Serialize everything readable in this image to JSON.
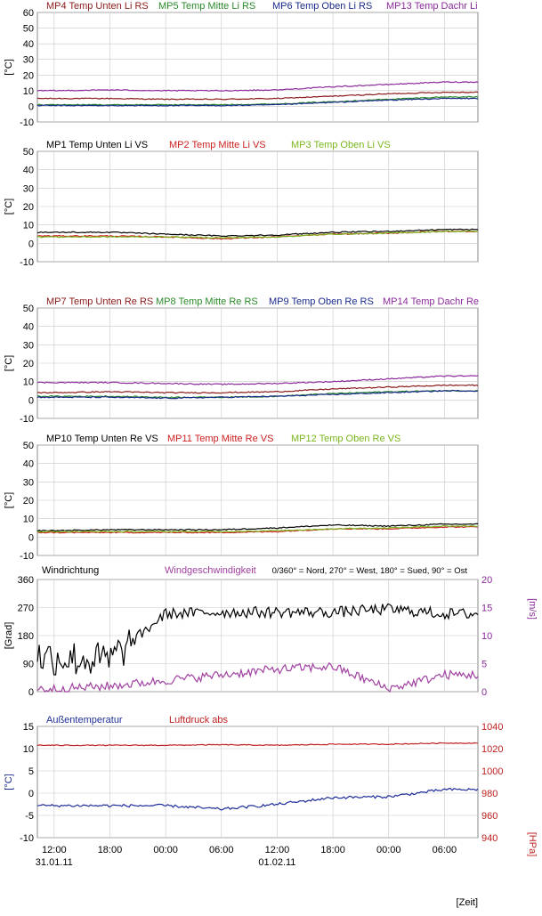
{
  "time_axis": {
    "ticks": [
      "12:00",
      "18:00",
      "00:00",
      "06:00",
      "12:00",
      "18:00",
      "00:00",
      "06:00"
    ],
    "dates": [
      "31.01.11",
      "01.02.11"
    ],
    "label": "[Zeit]"
  },
  "colors": {
    "dark_red": "#8b1a1a",
    "green": "#2a8a2a",
    "navy": "#1a2a8b",
    "purple": "#8b2a9b",
    "black": "#000000",
    "red": "#cc2020",
    "lime": "#7ab51d",
    "magenta": "#a040a0",
    "blue": "#1f2f9a",
    "luft": "#c02020",
    "grid": "#c8c8c8",
    "axis_left": "#1a2a8b",
    "axis_right": "#c02020",
    "axis_right_wind": "#8b2a9b"
  },
  "chart_data": [
    {
      "type": "line",
      "ylabel": "[°C]",
      "ylim": [
        -10,
        60
      ],
      "yticks": [
        -10,
        0,
        10,
        20,
        30,
        40,
        50,
        60
      ],
      "grid": true,
      "x": [
        "12:00",
        "18:00",
        "00:00",
        "06:00",
        "12:00",
        "18:00",
        "00:00",
        "06:00"
      ],
      "series": [
        {
          "name": "MP4 Temp Unten Li RS",
          "color": "dark_red",
          "values": [
            5,
            5,
            4.5,
            4.5,
            5,
            6.5,
            8,
            9
          ]
        },
        {
          "name": "MP5 Temp Mitte Li RS",
          "color": "green",
          "values": [
            1,
            1,
            1,
            1,
            1.5,
            3,
            4.5,
            6
          ]
        },
        {
          "name": "MP6 Temp Oben Li RS",
          "color": "navy",
          "values": [
            0.5,
            0.5,
            0.5,
            0.5,
            1,
            2.5,
            4,
            5
          ]
        },
        {
          "name": "MP13 Temp Dachr Li",
          "color": "purple",
          "values": [
            10,
            10.5,
            10,
            10,
            10.5,
            12.5,
            14,
            15.5
          ]
        }
      ]
    },
    {
      "type": "line",
      "ylabel": "[°C]",
      "ylim": [
        -10,
        50
      ],
      "yticks": [
        -10,
        0,
        10,
        20,
        30,
        40,
        50
      ],
      "grid": true,
      "x": [
        "12:00",
        "18:00",
        "00:00",
        "06:00",
        "12:00",
        "18:00",
        "00:00",
        "06:00"
      ],
      "series": [
        {
          "name": "MP1 Temp Unten Li VS",
          "color": "black",
          "values": [
            6,
            6,
            5,
            4,
            4.5,
            6,
            6.5,
            7.5
          ]
        },
        {
          "name": "MP2 Temp Mitte Li VS",
          "color": "red",
          "values": [
            4,
            4,
            3.5,
            2.5,
            3.5,
            5,
            5.5,
            6.5
          ]
        },
        {
          "name": "MP3 Temp Oben Li VS",
          "color": "lime",
          "values": [
            3.5,
            3.5,
            3.5,
            3,
            3.5,
            5,
            5.5,
            6.5
          ]
        }
      ]
    },
    {
      "type": "line",
      "ylabel": "[°C]",
      "ylim": [
        -10,
        50
      ],
      "yticks": [
        -10,
        0,
        10,
        20,
        30,
        40,
        50
      ],
      "grid": true,
      "x": [
        "12:00",
        "18:00",
        "00:00",
        "06:00",
        "12:00",
        "18:00",
        "00:00",
        "06:00"
      ],
      "series": [
        {
          "name": "MP7 Temp Unten Re RS",
          "color": "dark_red",
          "values": [
            4,
            4.5,
            4,
            4,
            4.5,
            6,
            7,
            8
          ]
        },
        {
          "name": "MP8 Temp Mitte Re RS",
          "color": "green",
          "values": [
            2,
            2,
            1.5,
            1.5,
            2,
            3.5,
            4.5,
            5
          ]
        },
        {
          "name": "MP9 Temp Oben Re RS",
          "color": "navy",
          "values": [
            1.5,
            1.5,
            1,
            1.5,
            2,
            3,
            4,
            5
          ]
        },
        {
          "name": "MP14 Temp Dachr Re",
          "color": "purple",
          "values": [
            9.5,
            9.5,
            9,
            8.5,
            9,
            10,
            11.5,
            13
          ]
        }
      ]
    },
    {
      "type": "line",
      "ylabel": "[°C]",
      "ylim": [
        -10,
        50
      ],
      "yticks": [
        -10,
        0,
        10,
        20,
        30,
        40,
        50
      ],
      "grid": true,
      "x": [
        "12:00",
        "18:00",
        "00:00",
        "06:00",
        "12:00",
        "18:00",
        "00:00",
        "06:00"
      ],
      "series": [
        {
          "name": "MP10 Temp Unten Re VS",
          "color": "black",
          "values": [
            3.5,
            4,
            4,
            4,
            5,
            6.5,
            6,
            7
          ]
        },
        {
          "name": "MP11 Temp Mitte Re VS",
          "color": "red",
          "values": [
            2.5,
            2.5,
            2.5,
            2.5,
            3,
            4.5,
            4.5,
            5.5
          ]
        },
        {
          "name": "MP12 Temp Oben Re VS",
          "color": "lime",
          "values": [
            3,
            3,
            3,
            3,
            3.5,
            4.5,
            5,
            6
          ]
        }
      ]
    },
    {
      "type": "line",
      "ylabel": "[Grad]",
      "ylabel_right": "[m/s]",
      "ylim": [
        0,
        360
      ],
      "ylim_right": [
        0,
        20
      ],
      "yticks": [
        0,
        90,
        180,
        270,
        360
      ],
      "yticks_right": [
        0,
        5,
        10,
        15,
        20
      ],
      "annotation": "0/360° = Nord, 270° = West, 180° = Sued, 90° = Ost",
      "grid": true,
      "x": [
        "12:00",
        "18:00",
        "00:00",
        "06:00",
        "12:00",
        "18:00",
        "00:00",
        "06:00"
      ],
      "series": [
        {
          "name": "Windrichtung",
          "color": "black",
          "axis": "left",
          "values": [
            110,
            100,
            250,
            255,
            255,
            255,
            265,
            250
          ]
        },
        {
          "name": "Windgeschwindigkeit",
          "color": "magenta",
          "axis": "right",
          "values": [
            0.5,
            1,
            2,
            3,
            4,
            4.5,
            0.5,
            3
          ]
        }
      ]
    },
    {
      "type": "line",
      "ylabel": "[°C]",
      "ylabel_right": "[HPa]",
      "ylim": [
        -10,
        15
      ],
      "ylim_right": [
        940,
        1040
      ],
      "yticks": [
        -10,
        -5,
        0,
        5,
        10,
        15
      ],
      "yticks_right": [
        940,
        960,
        980,
        1000,
        1020,
        1040
      ],
      "grid": true,
      "x": [
        "12:00",
        "18:00",
        "00:00",
        "06:00",
        "12:00",
        "18:00",
        "00:00",
        "06:00"
      ],
      "series": [
        {
          "name": "Außentemperatur",
          "color": "blue",
          "axis": "left",
          "values": [
            -2.8,
            -2.8,
            -2.8,
            -3.6,
            -2.5,
            -1,
            -0.8,
            0.8
          ]
        },
        {
          "name": "Luftdruck abs",
          "color": "luft",
          "axis": "right",
          "values": [
            1023,
            1023,
            1023,
            1023.5,
            1023,
            1024,
            1024,
            1025
          ]
        }
      ]
    }
  ]
}
